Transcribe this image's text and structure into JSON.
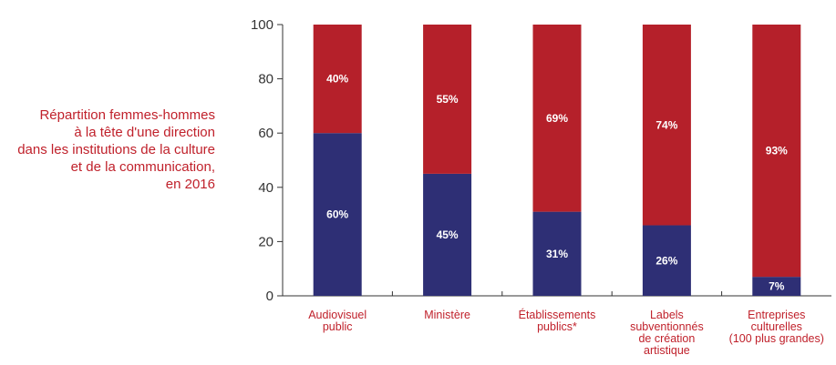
{
  "chart_data": {
    "type": "bar",
    "stacked": true,
    "title_lines": [
      "Répartition femmes-hommes",
      "à la tête d'une direction",
      "dans les institutions de la culture",
      "et de la communication,",
      "en 2016"
    ],
    "categories": [
      [
        "Audiovisuel",
        "public"
      ],
      [
        "Ministère"
      ],
      [
        "Établissements",
        "publics*"
      ],
      [
        "Labels",
        "subventionnés",
        "de création",
        "artistique"
      ],
      [
        "Entreprises",
        "culturelles",
        "(100 plus grandes)"
      ]
    ],
    "series": [
      {
        "values": [
          60,
          45,
          31,
          26,
          7
        ],
        "labels": [
          "60%",
          "45%",
          "31%",
          "26%",
          "7%"
        ],
        "color": "#2e2f75"
      },
      {
        "values": [
          40,
          55,
          69,
          74,
          93
        ],
        "labels": [
          "40%",
          "55%",
          "69%",
          "74%",
          "93%"
        ],
        "color": "#b5202a"
      }
    ],
    "yticks": [
      0,
      20,
      40,
      60,
      80,
      100
    ],
    "ylim": [
      0,
      100
    ],
    "grid": false,
    "legend": "none"
  }
}
